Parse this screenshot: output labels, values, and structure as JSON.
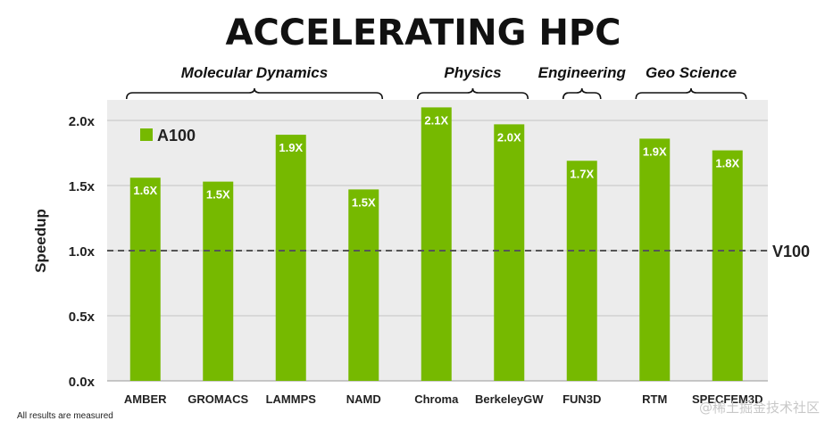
{
  "chart_data": {
    "type": "bar",
    "title": "ACCELERATING HPC",
    "categories": [
      "AMBER",
      "GROMACS",
      "LAMMPS",
      "NAMD",
      "Chroma",
      "BerkeleyGW",
      "FUN3D",
      "RTM",
      "SPECFEM3D"
    ],
    "series": [
      {
        "name": "A100",
        "color": "#76b900",
        "values": [
          1.56,
          1.53,
          1.89,
          1.47,
          2.1,
          1.97,
          1.69,
          1.86,
          1.77
        ],
        "labels": [
          "1.6X",
          "1.5X",
          "1.9X",
          "1.5X",
          "2.1X",
          "2.0X",
          "1.7X",
          "1.9X",
          "1.8X"
        ]
      }
    ],
    "groups": [
      {
        "label": "Molecular Dynamics",
        "start": 0,
        "end": 3
      },
      {
        "label": "Physics",
        "start": 4,
        "end": 5
      },
      {
        "label": "Engineering",
        "start": 6,
        "end": 6
      },
      {
        "label": "Geo Science",
        "start": 7,
        "end": 8
      }
    ],
    "ylabel": "Speedup",
    "xlabel": "",
    "ylim": [
      0,
      2.1
    ],
    "yticks": [
      0,
      0.5,
      1.0,
      1.5,
      2.0
    ],
    "ytick_labels": [
      "0.0x",
      "0.5x",
      "1.0x",
      "1.5x",
      "2.0x"
    ],
    "reference_line": {
      "value": 1.0,
      "label": "V100",
      "color": "#555555"
    },
    "legend": "top-left",
    "grid": true
  },
  "footnote": "All results are measured",
  "watermark": "@稀土掘金技术社区"
}
